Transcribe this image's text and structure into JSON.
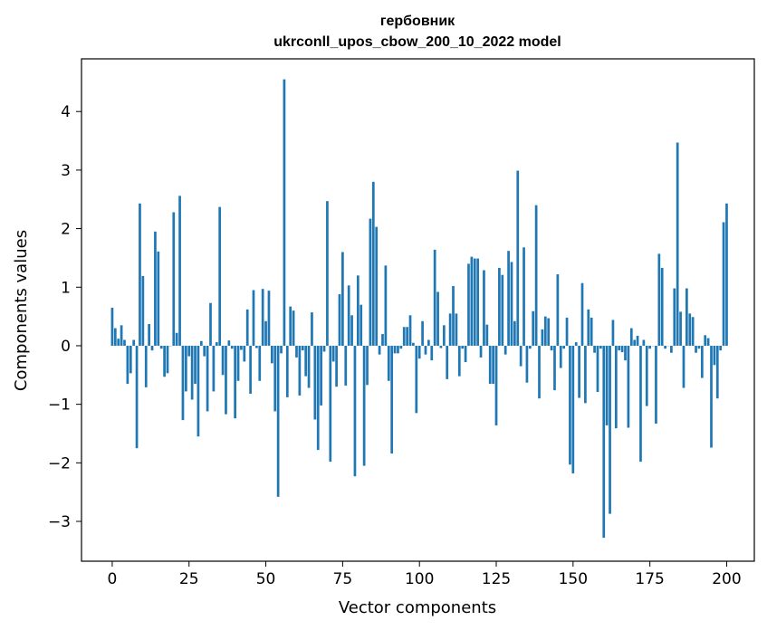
{
  "chart_data": {
    "type": "bar",
    "title": "гербовник",
    "subtitle": "ukrconll_upos_cbow_200_10_2022 model",
    "xlabel": "Vector components",
    "ylabel": "Components values",
    "xlim": [
      -10,
      209
    ],
    "ylim": [
      -3.68,
      4.9
    ],
    "xticks": [
      0,
      25,
      50,
      75,
      100,
      125,
      150,
      175,
      200
    ],
    "yticks": [
      -3,
      -2,
      -1,
      0,
      1,
      2,
      3,
      4
    ],
    "bar_color": "#1f77b4",
    "grid": false,
    "legend": "none",
    "values": [
      0.65,
      0.3,
      0.12,
      0.35,
      0.1,
      -0.65,
      -0.47,
      0.1,
      -1.75,
      2.43,
      1.19,
      -0.71,
      0.37,
      -0.08,
      1.95,
      1.61,
      -0.05,
      -0.53,
      -0.47,
      0.0,
      2.28,
      0.22,
      2.56,
      -1.27,
      -0.78,
      -0.18,
      -0.92,
      -0.65,
      -1.55,
      0.08,
      -0.18,
      -1.12,
      0.73,
      -0.78,
      0.06,
      2.37,
      -0.5,
      -1.17,
      0.09,
      -0.05,
      -1.24,
      -0.6,
      -0.07,
      -0.27,
      0.62,
      -0.82,
      0.95,
      -0.04,
      -0.6,
      0.97,
      0.42,
      0.94,
      -0.3,
      -1.12,
      -2.58,
      -0.13,
      4.55,
      -0.88,
      0.67,
      0.6,
      -0.2,
      -0.85,
      -0.08,
      -0.52,
      -0.72,
      0.57,
      -1.26,
      -1.78,
      -1.02,
      -0.1,
      2.47,
      -1.98,
      -0.27,
      -0.7,
      0.88,
      1.6,
      -0.68,
      1.03,
      0.52,
      -2.23,
      1.2,
      0.7,
      -2.05,
      -0.67,
      2.17,
      2.8,
      2.03,
      -0.15,
      0.2,
      1.37,
      -0.6,
      -1.84,
      -0.13,
      -0.13,
      -0.05,
      0.32,
      0.32,
      0.52,
      0.05,
      -1.15,
      -0.22,
      0.42,
      -0.15,
      0.1,
      -0.25,
      1.64,
      0.92,
      -0.04,
      0.35,
      -0.57,
      0.55,
      1.02,
      0.55,
      -0.52,
      -0.05,
      -0.28,
      1.4,
      1.52,
      1.49,
      1.49,
      -0.2,
      1.29,
      0.36,
      -0.65,
      -0.65,
      -1.36,
      1.33,
      1.21,
      -0.15,
      1.62,
      1.43,
      0.42,
      2.99,
      -0.35,
      1.68,
      -0.63,
      -0.05,
      0.59,
      2.4,
      -0.9,
      0.28,
      0.5,
      0.47,
      -0.08,
      -0.76,
      1.22,
      -0.38,
      -0.05,
      0.48,
      -2.03,
      -2.18,
      0.06,
      -0.89,
      1.07,
      -0.98,
      0.62,
      0.48,
      -0.12,
      -0.79,
      -0.05,
      -3.28,
      -1.36,
      -2.87,
      0.44,
      -1.41,
      -0.08,
      -0.11,
      -0.25,
      -1.4,
      0.3,
      0.1,
      0.17,
      -1.98,
      0.1,
      -1.03,
      -0.05,
      0.0,
      -1.33,
      1.57,
      1.33,
      -0.05,
      0.0,
      -0.12,
      0.98,
      3.47,
      0.58,
      -0.72,
      0.98,
      0.55,
      0.49,
      -0.12,
      -0.05,
      -0.55,
      0.18,
      0.13,
      -1.74,
      -0.33,
      -0.9,
      -0.08,
      2.11,
      2.43
    ]
  }
}
